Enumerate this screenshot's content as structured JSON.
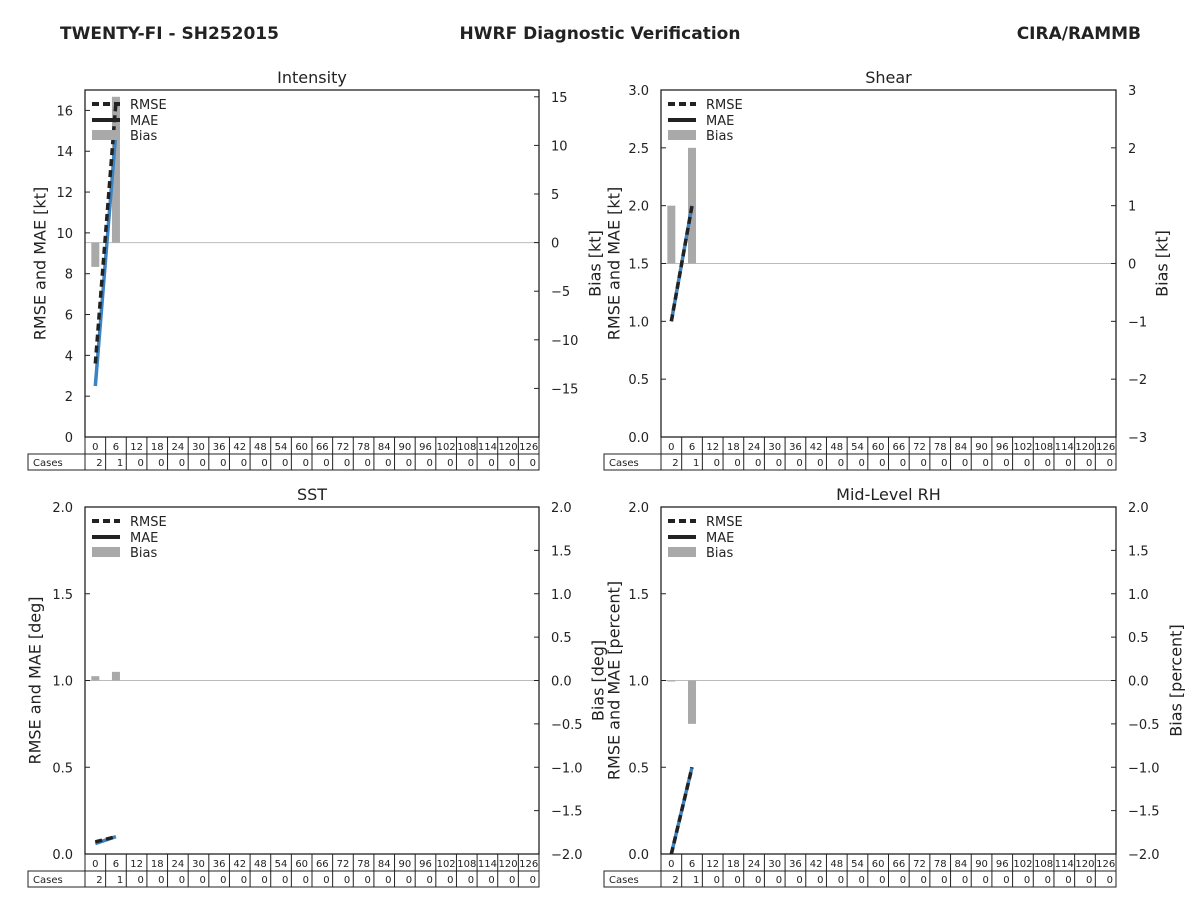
{
  "header": {
    "left": "TWENTY-FI - SH252015",
    "center": "HWRF Diagnostic Verification",
    "right": "CIRA/RAMMB"
  },
  "legend": {
    "rmse": "RMSE",
    "mae": "MAE",
    "bias": "Bias"
  },
  "table": {
    "label": "Cases",
    "lead_times": [
      "0",
      "6",
      "12",
      "18",
      "24",
      "30",
      "36",
      "42",
      "48",
      "54",
      "60",
      "66",
      "72",
      "78",
      "84",
      "90",
      "96",
      "102",
      "108",
      "114",
      "120",
      "126"
    ],
    "cases": [
      "2",
      "1",
      "0",
      "0",
      "0",
      "0",
      "0",
      "0",
      "0",
      "0",
      "0",
      "0",
      "0",
      "0",
      "0",
      "0",
      "0",
      "0",
      "0",
      "0",
      "0",
      "0"
    ]
  },
  "colors": {
    "rmse": "#222222",
    "mae": "#3a84c4",
    "bias": "#a9a9a9",
    "zero_line": "#bbbbbb",
    "axis": "#222222"
  },
  "chart_data": [
    {
      "id": "intensity",
      "type": "line",
      "title": "Intensity",
      "ylabel": "RMSE and MAE [kt]",
      "y2label": "Bias [kt]",
      "x": [
        0,
        6
      ],
      "ylim": [
        0,
        17
      ],
      "yticks": [
        "0",
        "2",
        "4",
        "6",
        "8",
        "10",
        "12",
        "14",
        "16"
      ],
      "yticks_values": [
        0,
        2,
        4,
        6,
        8,
        10,
        12,
        14,
        16
      ],
      "y2lim": [
        -20,
        15.7
      ],
      "y2ticks": [
        "−15",
        "−10",
        "−5",
        "0",
        "5",
        "10",
        "15"
      ],
      "y2ticks_values": [
        -15,
        -10,
        -5,
        0,
        5,
        10,
        15
      ],
      "series": [
        {
          "name": "RMSE",
          "values": [
            3.6,
            16.4
          ]
        },
        {
          "name": "MAE",
          "values": [
            2.5,
            15.0
          ]
        },
        {
          "name": "Bias",
          "values": [
            -2.5,
            15.0
          ]
        }
      ]
    },
    {
      "id": "shear",
      "type": "line",
      "title": "Shear",
      "ylabel": "RMSE and MAE [kt]",
      "y2label": "Bias [kt]",
      "x": [
        0,
        6
      ],
      "ylim": [
        0,
        3.0
      ],
      "yticks": [
        "0.0",
        "0.5",
        "1.0",
        "1.5",
        "2.0",
        "2.5",
        "3.0"
      ],
      "yticks_values": [
        0,
        0.5,
        1.0,
        1.5,
        2.0,
        2.5,
        3.0
      ],
      "y2lim": [
        -3,
        3
      ],
      "y2ticks": [
        "−3",
        "−2",
        "−1",
        "0",
        "1",
        "2",
        "3"
      ],
      "y2ticks_values": [
        -3,
        -2,
        -1,
        0,
        1,
        2,
        3
      ],
      "series": [
        {
          "name": "RMSE",
          "values": [
            1.0,
            2.0
          ]
        },
        {
          "name": "MAE",
          "values": [
            1.0,
            2.0
          ]
        },
        {
          "name": "Bias",
          "values": [
            1.0,
            2.0
          ]
        }
      ]
    },
    {
      "id": "sst",
      "type": "line",
      "title": "SST",
      "ylabel": "RMSE and MAE [deg]",
      "y2label": "Bias [deg]",
      "x": [
        0,
        6
      ],
      "ylim": [
        0,
        2.0
      ],
      "yticks": [
        "0.0",
        "0.5",
        "1.0",
        "1.5",
        "2.0"
      ],
      "yticks_values": [
        0,
        0.5,
        1.0,
        1.5,
        2.0
      ],
      "y2lim": [
        -2.0,
        2.0
      ],
      "y2ticks": [
        "−2.0",
        "−1.5",
        "−1.0",
        "−0.5",
        "0.0",
        "0.5",
        "1.0",
        "1.5",
        "2.0"
      ],
      "y2ticks_values": [
        -2.0,
        -1.5,
        -1.0,
        -0.5,
        0,
        0.5,
        1.0,
        1.5,
        2.0
      ],
      "series": [
        {
          "name": "RMSE",
          "values": [
            0.07,
            0.1
          ]
        },
        {
          "name": "MAE",
          "values": [
            0.06,
            0.1
          ]
        },
        {
          "name": "Bias",
          "values": [
            0.05,
            0.1
          ]
        }
      ]
    },
    {
      "id": "midlevel_rh",
      "type": "line",
      "title": "Mid-Level RH",
      "ylabel": "RMSE and MAE [percent]",
      "y2label": "Bias [percent]",
      "x": [
        0,
        6
      ],
      "ylim": [
        0,
        2.0
      ],
      "yticks": [
        "0.0",
        "0.5",
        "1.0",
        "1.5",
        "2.0"
      ],
      "yticks_values": [
        0,
        0.5,
        1.0,
        1.5,
        2.0
      ],
      "y2lim": [
        -2.0,
        2.0
      ],
      "y2ticks": [
        "−2.0",
        "−1.5",
        "−1.0",
        "−0.5",
        "0.0",
        "0.5",
        "1.0",
        "1.5",
        "2.0"
      ],
      "y2ticks_values": [
        -2.0,
        -1.5,
        -1.0,
        -0.5,
        0,
        0.5,
        1.0,
        1.5,
        2.0
      ],
      "series": [
        {
          "name": "RMSE",
          "values": [
            0.0,
            0.5
          ]
        },
        {
          "name": "MAE",
          "values": [
            0.0,
            0.5
          ]
        },
        {
          "name": "Bias",
          "values": [
            0.0,
            -0.5
          ]
        }
      ]
    }
  ]
}
